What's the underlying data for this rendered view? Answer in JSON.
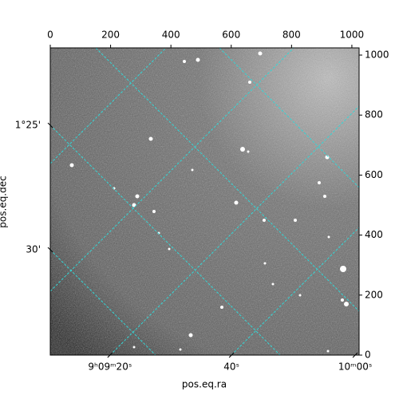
{
  "chart_data": {
    "type": "image",
    "x_label": "pos.eq.ra",
    "y_label": "pos.eq.dec",
    "xlim": [
      0,
      1024
    ],
    "ylim": [
      0,
      1024
    ],
    "xticks": [
      0,
      200,
      400,
      600,
      800,
      1000
    ],
    "yticks": [
      0,
      200,
      400,
      600,
      800,
      1000
    ],
    "ra_ticks": [
      {
        "value": 198,
        "label": "9ʰ09ᵐ20ˢ"
      },
      {
        "value": 601,
        "label": "40ˢ"
      },
      {
        "value": 1011,
        "label": "10ᵐ00ˢ"
      }
    ],
    "dec_ticks": [
      {
        "value": 766,
        "label": "1°25'"
      },
      {
        "value": 351,
        "label": "30'"
      }
    ]
  }
}
